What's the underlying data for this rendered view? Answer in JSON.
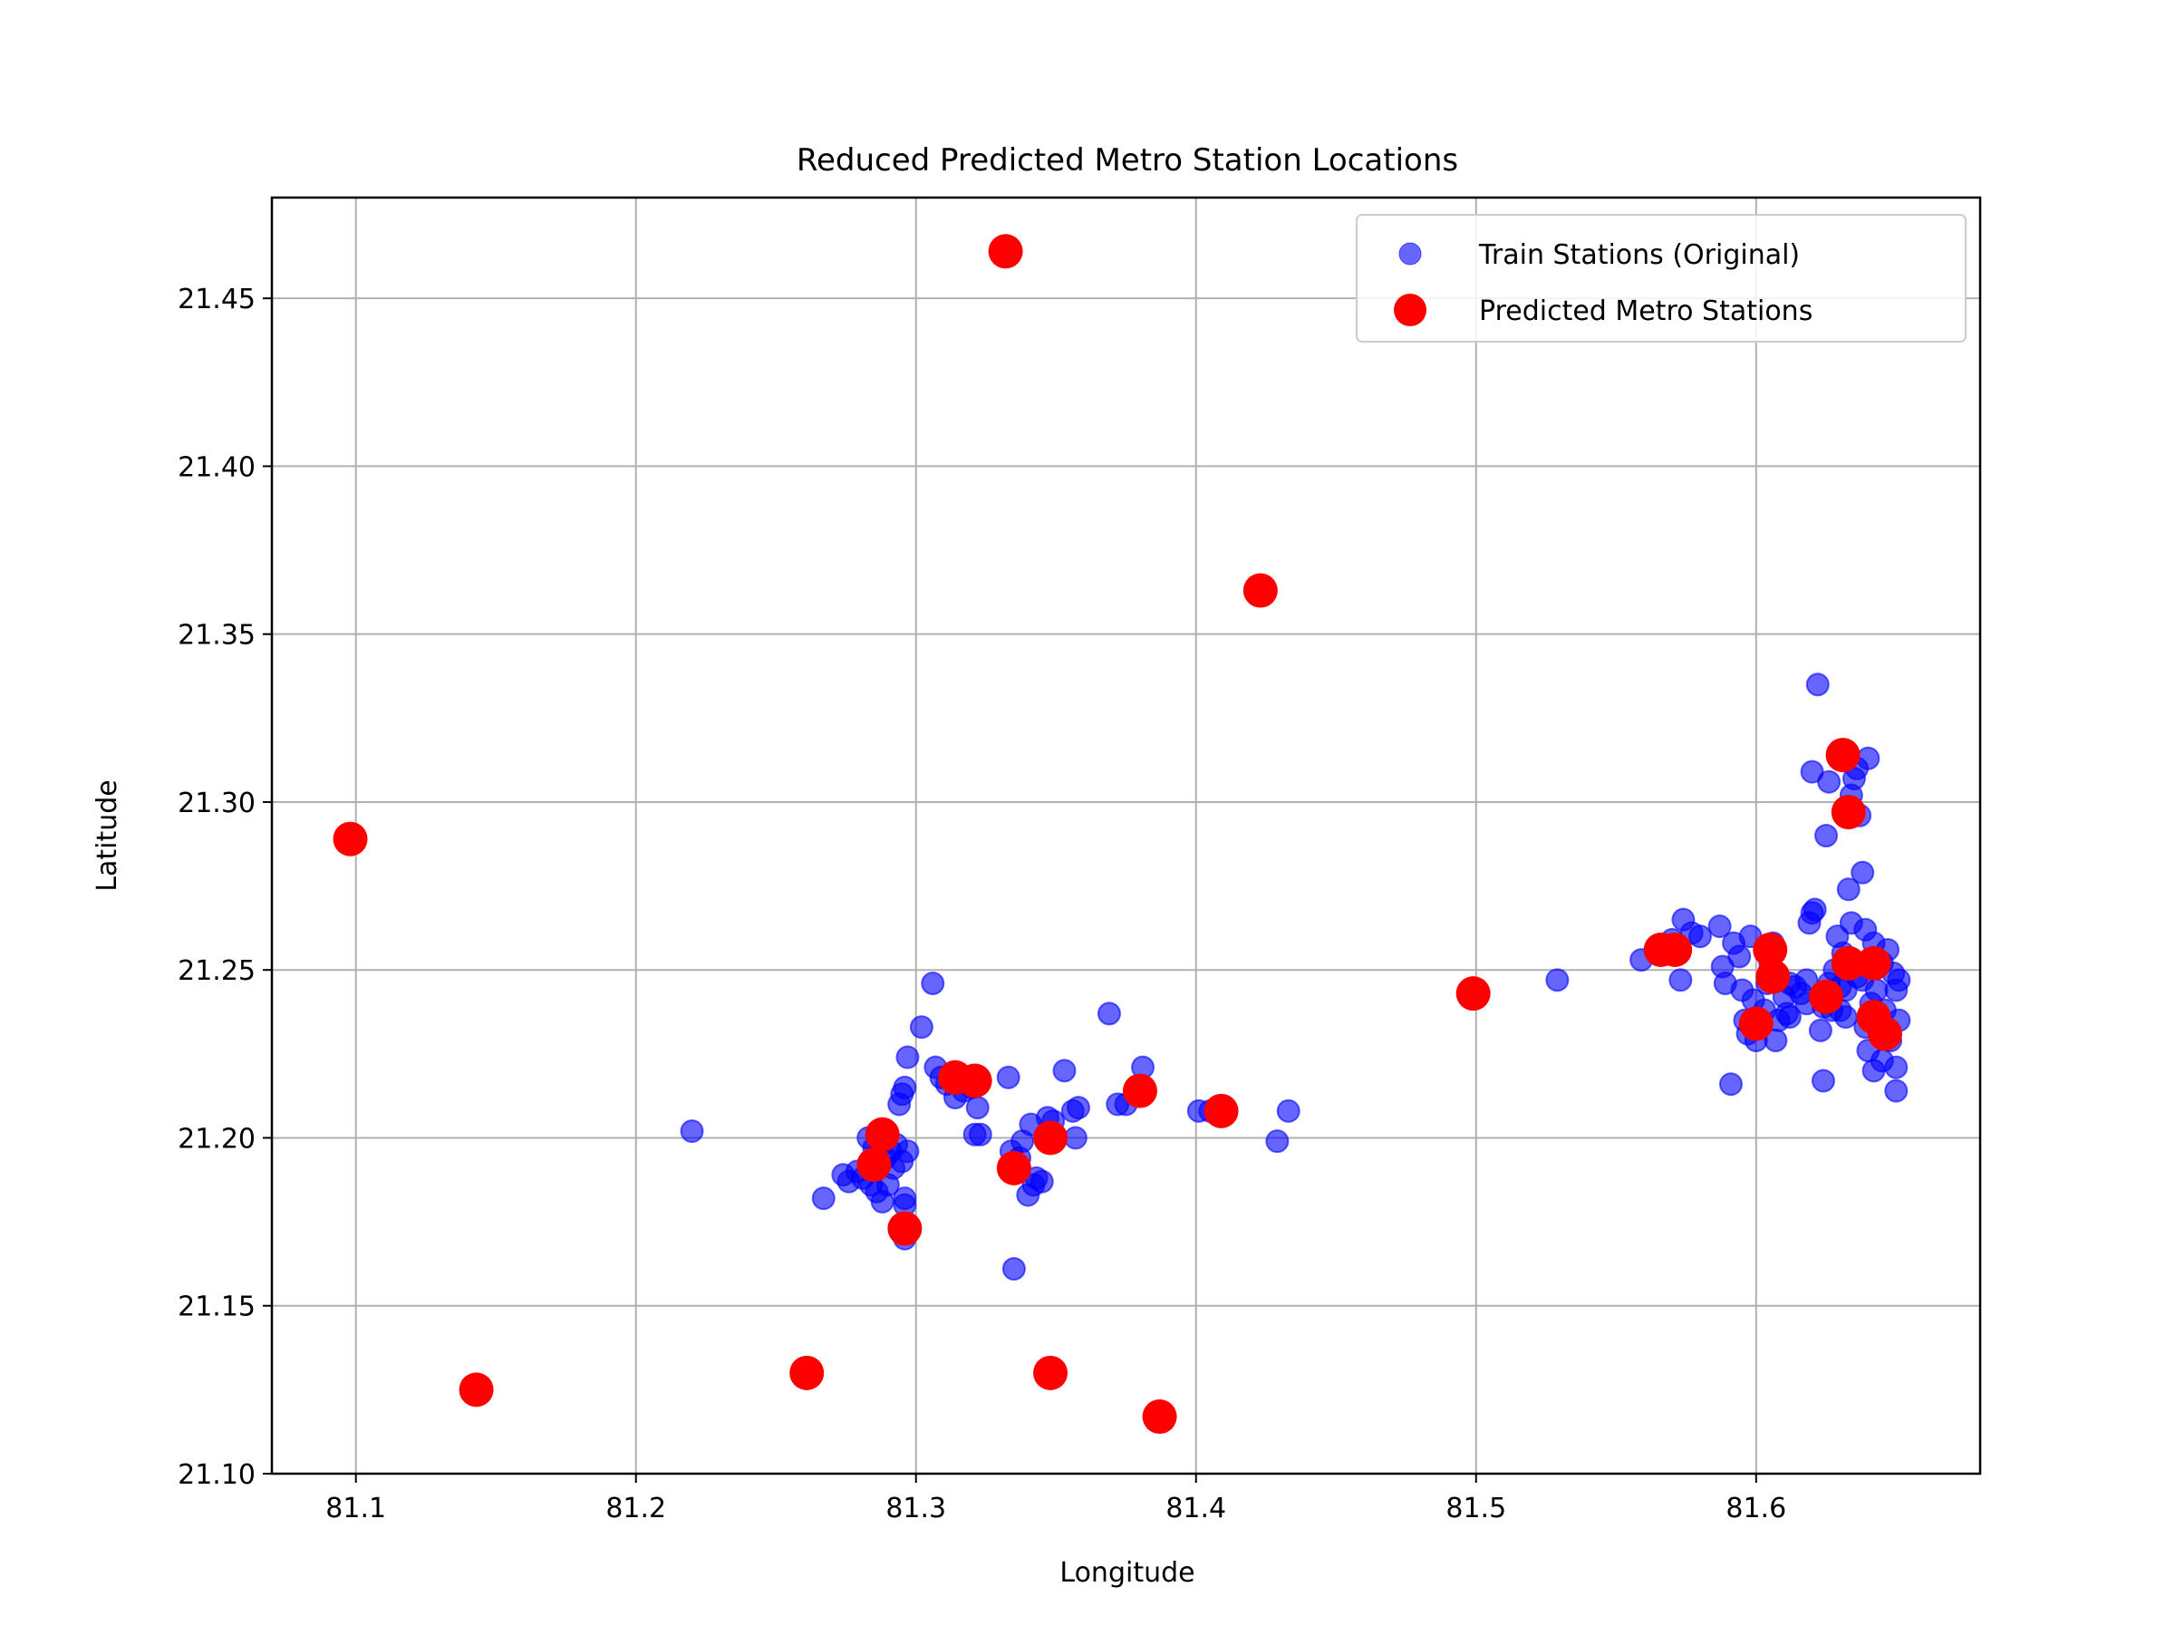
{
  "chart_data": {
    "type": "scatter",
    "title": "Reduced Predicted Metro Station Locations",
    "xlabel": "Longitude",
    "ylabel": "Latitude",
    "xlim": [
      81.07,
      81.68
    ],
    "ylim": [
      21.1,
      21.48
    ],
    "xticks": [
      81.1,
      81.2,
      81.3,
      81.4,
      81.5,
      81.6
    ],
    "xtick_labels": [
      "81.1",
      "81.2",
      "81.3",
      "81.4",
      "81.5",
      "81.6"
    ],
    "yticks": [
      21.1,
      21.15,
      21.2,
      21.25,
      21.3,
      21.35,
      21.4,
      21.45
    ],
    "ytick_labels": [
      "21.10",
      "21.15",
      "21.20",
      "21.25",
      "21.30",
      "21.35",
      "21.40",
      "21.45"
    ],
    "grid": true,
    "legend_position": "top-right",
    "series": [
      {
        "name": "Train Stations (Original)",
        "color": "#0000ff",
        "alpha": 0.6,
        "marker": "circle-small",
        "points": [
          [
            81.22,
            21.202
          ],
          [
            81.267,
            21.182
          ],
          [
            81.274,
            21.189
          ],
          [
            81.276,
            21.187
          ],
          [
            81.279,
            21.19
          ],
          [
            81.281,
            21.188
          ],
          [
            81.284,
            21.186
          ],
          [
            81.286,
            21.184
          ],
          [
            81.288,
            21.181
          ],
          [
            81.29,
            21.186
          ],
          [
            81.292,
            21.191
          ],
          [
            81.285,
            21.197
          ],
          [
            81.287,
            21.199
          ],
          [
            81.289,
            21.194
          ],
          [
            81.291,
            21.196
          ],
          [
            81.293,
            21.198
          ],
          [
            81.295,
            21.193
          ],
          [
            81.297,
            21.196
          ],
          [
            81.283,
            21.2
          ],
          [
            81.294,
            21.21
          ],
          [
            81.295,
            21.213
          ],
          [
            81.296,
            21.215
          ],
          [
            81.297,
            21.224
          ],
          [
            81.302,
            21.233
          ],
          [
            81.306,
            21.246
          ],
          [
            81.307,
            21.221
          ],
          [
            81.309,
            21.218
          ],
          [
            81.311,
            21.216
          ],
          [
            81.314,
            21.212
          ],
          [
            81.317,
            21.214
          ],
          [
            81.32,
            21.215
          ],
          [
            81.322,
            21.209
          ],
          [
            81.321,
            21.201
          ],
          [
            81.323,
            21.201
          ],
          [
            81.296,
            21.182
          ],
          [
            81.296,
            21.18
          ],
          [
            81.296,
            21.174
          ],
          [
            81.296,
            21.17
          ],
          [
            81.333,
            21.218
          ],
          [
            81.334,
            21.196
          ],
          [
            81.337,
            21.194
          ],
          [
            81.338,
            21.199
          ],
          [
            81.34,
            21.183
          ],
          [
            81.342,
            21.186
          ],
          [
            81.343,
            21.188
          ],
          [
            81.345,
            21.187
          ],
          [
            81.341,
            21.204
          ],
          [
            81.347,
            21.206
          ],
          [
            81.349,
            21.205
          ],
          [
            81.353,
            21.22
          ],
          [
            81.356,
            21.208
          ],
          [
            81.358,
            21.209
          ],
          [
            81.357,
            21.2
          ],
          [
            81.335,
            21.161
          ],
          [
            81.369,
            21.237
          ],
          [
            81.372,
            21.21
          ],
          [
            81.375,
            21.21
          ],
          [
            81.381,
            21.221
          ],
          [
            81.401,
            21.208
          ],
          [
            81.405,
            21.208
          ],
          [
            81.429,
            21.199
          ],
          [
            81.433,
            21.208
          ],
          [
            81.529,
            21.247
          ],
          [
            81.559,
            21.253
          ],
          [
            81.564,
            21.256
          ],
          [
            81.57,
            21.259
          ],
          [
            81.573,
            21.247
          ],
          [
            81.574,
            21.265
          ],
          [
            81.577,
            21.261
          ],
          [
            81.58,
            21.26
          ],
          [
            81.587,
            21.263
          ],
          [
            81.588,
            21.251
          ],
          [
            81.589,
            21.246
          ],
          [
            81.591,
            21.216
          ],
          [
            81.592,
            21.258
          ],
          [
            81.594,
            21.254
          ],
          [
            81.595,
            21.244
          ],
          [
            81.596,
            21.235
          ],
          [
            81.597,
            21.231
          ],
          [
            81.598,
            21.26
          ],
          [
            81.599,
            21.241
          ],
          [
            81.6,
            21.229
          ],
          [
            81.601,
            21.233
          ],
          [
            81.603,
            21.238
          ],
          [
            81.604,
            21.246
          ],
          [
            81.605,
            21.252
          ],
          [
            81.606,
            21.258
          ],
          [
            81.607,
            21.229
          ],
          [
            81.608,
            21.235
          ],
          [
            81.61,
            21.242
          ],
          [
            81.611,
            21.237
          ],
          [
            81.612,
            21.236
          ],
          [
            81.614,
            21.245
          ],
          [
            81.616,
            21.243
          ],
          [
            81.618,
            21.24
          ],
          [
            81.619,
            21.264
          ],
          [
            81.62,
            21.267
          ],
          [
            81.621,
            21.268
          ],
          [
            81.62,
            21.309
          ],
          [
            81.622,
            21.335
          ],
          [
            81.623,
            21.232
          ],
          [
            81.624,
            21.217
          ],
          [
            81.625,
            21.29
          ],
          [
            81.626,
            21.306
          ],
          [
            81.627,
            21.238
          ],
          [
            81.628,
            21.25
          ],
          [
            81.629,
            21.26
          ],
          [
            81.63,
            21.245
          ],
          [
            81.631,
            21.255
          ],
          [
            81.632,
            21.236
          ],
          [
            81.633,
            21.274
          ],
          [
            81.634,
            21.264
          ],
          [
            81.634,
            21.302
          ],
          [
            81.635,
            21.307
          ],
          [
            81.636,
            21.31
          ],
          [
            81.637,
            21.296
          ],
          [
            81.638,
            21.279
          ],
          [
            81.638,
            21.247
          ],
          [
            81.639,
            21.262
          ],
          [
            81.64,
            21.313
          ],
          [
            81.64,
            21.226
          ],
          [
            81.641,
            21.24
          ],
          [
            81.642,
            21.22
          ],
          [
            81.642,
            21.258
          ],
          [
            81.643,
            21.244
          ],
          [
            81.644,
            21.232
          ],
          [
            81.645,
            21.252
          ],
          [
            81.645,
            21.223
          ],
          [
            81.646,
            21.238
          ],
          [
            81.647,
            21.256
          ],
          [
            81.648,
            21.229
          ],
          [
            81.649,
            21.249
          ],
          [
            81.65,
            21.244
          ],
          [
            81.65,
            21.214
          ],
          [
            81.65,
            21.221
          ],
          [
            81.651,
            21.235
          ],
          [
            81.651,
            21.247
          ],
          [
            81.636,
            21.248
          ],
          [
            81.632,
            21.244
          ],
          [
            81.626,
            21.246
          ],
          [
            81.618,
            21.247
          ],
          [
            81.612,
            21.246
          ],
          [
            81.624,
            21.239
          ],
          [
            81.63,
            21.238
          ],
          [
            81.639,
            21.233
          ]
        ]
      },
      {
        "name": "Predicted Metro Stations",
        "color": "#ff0000",
        "alpha": 1.0,
        "marker": "circle-large",
        "points": [
          [
            81.098,
            21.289
          ],
          [
            81.143,
            21.125
          ],
          [
            81.261,
            21.13
          ],
          [
            81.285,
            21.192
          ],
          [
            81.288,
            21.201
          ],
          [
            81.296,
            21.173
          ],
          [
            81.314,
            21.218
          ],
          [
            81.321,
            21.217
          ],
          [
            81.332,
            21.464
          ],
          [
            81.335,
            21.191
          ],
          [
            81.348,
            21.2
          ],
          [
            81.348,
            21.13
          ],
          [
            81.38,
            21.214
          ],
          [
            81.387,
            21.117
          ],
          [
            81.409,
            21.208
          ],
          [
            81.423,
            21.363
          ],
          [
            81.499,
            21.243
          ],
          [
            81.566,
            21.256
          ],
          [
            81.571,
            21.256
          ],
          [
            81.6,
            21.234
          ],
          [
            81.605,
            21.256
          ],
          [
            81.606,
            21.248
          ],
          [
            81.625,
            21.242
          ],
          [
            81.631,
            21.314
          ],
          [
            81.633,
            21.297
          ],
          [
            81.633,
            21.252
          ],
          [
            81.642,
            21.252
          ],
          [
            81.642,
            21.236
          ],
          [
            81.646,
            21.231
          ]
        ]
      }
    ]
  }
}
